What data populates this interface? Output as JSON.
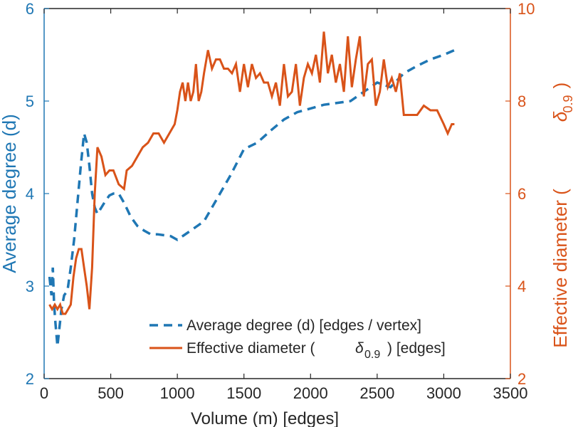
{
  "chart_data": {
    "type": "line",
    "xlabel": "Volume (m) [edges]",
    "ylabel_left": "Average degree (d)",
    "ylabel_right_main": "Effective diameter (",
    "ylabel_right_symbol": "δ",
    "ylabel_right_sub": "0.9",
    "ylabel_right_close": ")",
    "xlim": [
      0,
      3500
    ],
    "ylim_left": [
      2,
      6
    ],
    "ylim_right": [
      2,
      10
    ],
    "xticks": [
      0,
      500,
      1000,
      1500,
      2000,
      2500,
      3000,
      3500
    ],
    "yticks_left": [
      2,
      3,
      4,
      5,
      6
    ],
    "yticks_right": [
      2,
      4,
      6,
      8,
      10
    ],
    "grid": false,
    "legend_placement": "bottom-right",
    "colors": {
      "left": "#1f77b4",
      "right": "#d95319",
      "axis": "#262626"
    },
    "series": [
      {
        "name": "Average degree (d) [edges / vertex]",
        "axis": "left",
        "style": "dashed",
        "color": "#1f77b4",
        "x": [
          40,
          55,
          65,
          75,
          85,
          100,
          115,
          130,
          150,
          175,
          200,
          225,
          250,
          275,
          300,
          320,
          340,
          360,
          380,
          400,
          430,
          460,
          490,
          520,
          560,
          600,
          650,
          700,
          750,
          800,
          850,
          900,
          950,
          1000,
          1050,
          1100,
          1150,
          1200,
          1300,
          1400,
          1500,
          1600,
          1700,
          1800,
          1900,
          2000,
          2100,
          2200,
          2300,
          2400,
          2500,
          2600,
          2700,
          2800,
          2900,
          3000,
          3080
        ],
        "values": [
          3.1,
          2.9,
          3.2,
          2.8,
          2.6,
          2.35,
          2.55,
          2.75,
          2.9,
          2.95,
          3.2,
          3.5,
          3.9,
          4.3,
          4.65,
          4.55,
          4.3,
          4.0,
          3.85,
          3.78,
          3.85,
          3.92,
          3.98,
          4.0,
          4.0,
          3.9,
          3.75,
          3.65,
          3.6,
          3.56,
          3.56,
          3.55,
          3.54,
          3.5,
          3.55,
          3.6,
          3.65,
          3.7,
          3.95,
          4.2,
          4.48,
          4.55,
          4.68,
          4.8,
          4.88,
          4.92,
          4.96,
          4.98,
          5.0,
          5.1,
          5.2,
          5.15,
          5.3,
          5.38,
          5.45,
          5.5,
          5.55
        ]
      },
      {
        "name_main": "Effective diameter (",
        "name_symbol": "δ",
        "name_sub": "0.9",
        "name_close": ") [edges]",
        "axis": "right",
        "style": "solid",
        "color": "#d95319",
        "x": [
          40,
          60,
          80,
          100,
          120,
          140,
          160,
          180,
          200,
          220,
          240,
          260,
          280,
          300,
          320,
          340,
          360,
          380,
          400,
          430,
          460,
          490,
          520,
          560,
          600,
          620,
          660,
          700,
          740,
          780,
          820,
          860,
          900,
          940,
          980,
          1000,
          1020,
          1040,
          1060,
          1080,
          1100,
          1120,
          1140,
          1160,
          1180,
          1200,
          1230,
          1260,
          1290,
          1320,
          1350,
          1380,
          1410,
          1440,
          1470,
          1500,
          1530,
          1560,
          1590,
          1620,
          1650,
          1680,
          1710,
          1740,
          1770,
          1800,
          1830,
          1860,
          1890,
          1920,
          1950,
          1980,
          2010,
          2040,
          2070,
          2100,
          2130,
          2160,
          2190,
          2220,
          2250,
          2280,
          2310,
          2340,
          2370,
          2400,
          2430,
          2460,
          2490,
          2520,
          2550,
          2580,
          2610,
          2640,
          2670,
          2700,
          2750,
          2800,
          2850,
          2900,
          2950,
          3000,
          3030,
          3060,
          3080
        ],
        "values": [
          3.6,
          3.5,
          3.6,
          3.5,
          3.6,
          3.4,
          3.4,
          3.5,
          3.6,
          4.2,
          4.6,
          4.8,
          4.8,
          4.4,
          4.0,
          3.5,
          4.4,
          6.0,
          7.0,
          6.8,
          6.4,
          6.5,
          6.5,
          6.2,
          6.1,
          6.5,
          6.6,
          6.8,
          7.0,
          7.1,
          7.3,
          7.3,
          7.1,
          7.3,
          7.5,
          7.8,
          8.2,
          8.4,
          8.0,
          8.4,
          8.0,
          8.2,
          8.8,
          8.0,
          8.2,
          8.6,
          9.1,
          8.7,
          8.9,
          8.9,
          8.7,
          8.7,
          8.6,
          8.8,
          8.2,
          8.8,
          8.3,
          8.8,
          8.5,
          8.6,
          8.4,
          8.4,
          8.1,
          8.4,
          7.9,
          8.8,
          8.1,
          8.2,
          8.8,
          7.9,
          8.5,
          8.8,
          8.6,
          9.0,
          8.4,
          9.5,
          8.6,
          9.0,
          8.4,
          8.8,
          8.2,
          9.4,
          8.3,
          8.9,
          9.4,
          8.1,
          8.8,
          8.9,
          7.9,
          8.2,
          8.9,
          8.3,
          8.5,
          8.2,
          8.6,
          7.7,
          7.7,
          7.7,
          7.9,
          7.8,
          7.8,
          7.5,
          7.3,
          7.5,
          7.5
        ]
      }
    ]
  }
}
